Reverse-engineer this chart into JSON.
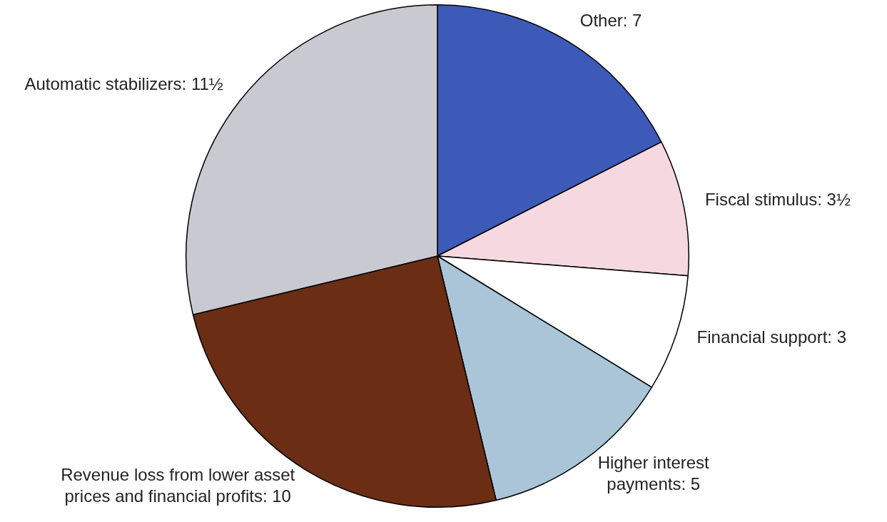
{
  "chart_data": {
    "type": "pie",
    "categories": [
      "Other",
      "Fiscal stimulus",
      "Financial support",
      "Higher interest payments",
      "Revenue loss from lower asset prices and financial profits",
      "Automatic stabilizers"
    ],
    "values": [
      7,
      3.5,
      3,
      5,
      10,
      11.5
    ],
    "value_labels": [
      "7",
      "3½",
      "3",
      "5",
      "10",
      "11½"
    ],
    "colors": [
      "#3e5ab8",
      "#f6d8e0",
      "#ffffff",
      "#aac5d8",
      "#6b2d14",
      "#c9c9d2"
    ],
    "legend": false
  }
}
